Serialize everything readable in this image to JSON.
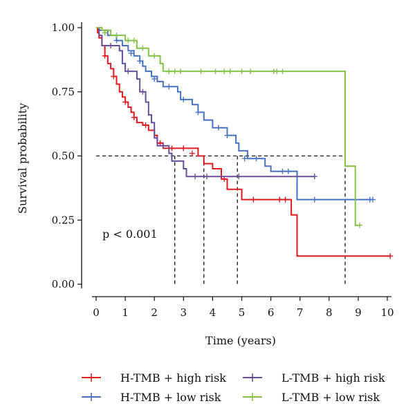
{
  "chart_data": {
    "type": "line",
    "subtype": "kaplan-meier",
    "xlabel": "Time (years)",
    "ylabel": "Survival probability",
    "xlim": [
      0,
      10
    ],
    "ylim": [
      0,
      1
    ],
    "xticks": [
      0,
      1,
      2,
      3,
      4,
      5,
      6,
      7,
      8,
      9,
      10
    ],
    "yticks": [
      0.0,
      0.25,
      0.5,
      0.75,
      1.0
    ],
    "ytick_labels": [
      "0.00",
      "0.25",
      "0.50",
      "0.75",
      "1.00"
    ],
    "annotation": "p < 0.001",
    "grid": false,
    "legend_position": "bottom",
    "median_reference": {
      "y": 0.5,
      "x_end": 8.55,
      "medians": [
        2.7,
        3.7,
        4.85,
        8.55
      ]
    },
    "series": [
      {
        "name": "H-TMB + high risk",
        "color": "#e41a1c",
        "steps": [
          [
            0,
            1.0
          ],
          [
            0.05,
            0.98
          ],
          [
            0.1,
            0.96
          ],
          [
            0.2,
            0.93
          ],
          [
            0.3,
            0.89
          ],
          [
            0.4,
            0.86
          ],
          [
            0.5,
            0.84
          ],
          [
            0.6,
            0.81
          ],
          [
            0.7,
            0.78
          ],
          [
            0.8,
            0.75
          ],
          [
            0.9,
            0.73
          ],
          [
            1.0,
            0.71
          ],
          [
            1.1,
            0.69
          ],
          [
            1.2,
            0.67
          ],
          [
            1.3,
            0.65
          ],
          [
            1.4,
            0.63
          ],
          [
            1.6,
            0.62
          ],
          [
            1.8,
            0.6
          ],
          [
            2.0,
            0.58
          ],
          [
            2.1,
            0.55
          ],
          [
            2.3,
            0.53
          ],
          [
            3.5,
            0.5
          ],
          [
            3.7,
            0.47
          ],
          [
            4.0,
            0.45
          ],
          [
            4.3,
            0.41
          ],
          [
            4.5,
            0.37
          ],
          [
            5.0,
            0.33
          ],
          [
            6.7,
            0.27
          ],
          [
            6.9,
            0.11
          ],
          [
            10.1,
            0.11
          ]
        ],
        "censored": [
          [
            0.3,
            0.89
          ],
          [
            0.6,
            0.81
          ],
          [
            1.0,
            0.71
          ],
          [
            1.3,
            0.65
          ],
          [
            1.7,
            0.62
          ],
          [
            2.2,
            0.55
          ],
          [
            2.6,
            0.53
          ],
          [
            3.0,
            0.53
          ],
          [
            3.3,
            0.51
          ],
          [
            4.4,
            0.41
          ],
          [
            5.4,
            0.33
          ],
          [
            6.3,
            0.33
          ],
          [
            6.5,
            0.33
          ],
          [
            10.1,
            0.11
          ]
        ]
      },
      {
        "name": "H-TMB + low risk",
        "color": "#4472c4",
        "steps": [
          [
            0,
            1.0
          ],
          [
            0.1,
            0.99
          ],
          [
            0.4,
            0.97
          ],
          [
            0.7,
            0.95
          ],
          [
            0.9,
            0.93
          ],
          [
            1.1,
            0.91
          ],
          [
            1.3,
            0.89
          ],
          [
            1.5,
            0.87
          ],
          [
            1.6,
            0.85
          ],
          [
            1.7,
            0.83
          ],
          [
            1.9,
            0.81
          ],
          [
            2.1,
            0.79
          ],
          [
            2.3,
            0.77
          ],
          [
            2.8,
            0.75
          ],
          [
            2.9,
            0.72
          ],
          [
            3.3,
            0.7
          ],
          [
            3.5,
            0.67
          ],
          [
            3.7,
            0.64
          ],
          [
            4.0,
            0.61
          ],
          [
            4.5,
            0.58
          ],
          [
            4.8,
            0.55
          ],
          [
            4.9,
            0.52
          ],
          [
            5.2,
            0.49
          ],
          [
            5.8,
            0.46
          ],
          [
            6.0,
            0.44
          ],
          [
            6.9,
            0.33
          ],
          [
            9.5,
            0.33
          ]
        ],
        "censored": [
          [
            0.3,
            0.98
          ],
          [
            0.7,
            0.95
          ],
          [
            1.2,
            0.9
          ],
          [
            1.5,
            0.87
          ],
          [
            2.0,
            0.8
          ],
          [
            2.5,
            0.77
          ],
          [
            3.0,
            0.72
          ],
          [
            3.5,
            0.67
          ],
          [
            4.2,
            0.61
          ],
          [
            4.5,
            0.58
          ],
          [
            5.1,
            0.49
          ],
          [
            5.5,
            0.49
          ],
          [
            6.4,
            0.44
          ],
          [
            6.6,
            0.44
          ],
          [
            7.5,
            0.33
          ],
          [
            9.4,
            0.33
          ],
          [
            9.5,
            0.33
          ]
        ]
      },
      {
        "name": "L-TMB + high risk",
        "color": "#6b4c9a",
        "steps": [
          [
            0,
            1.0
          ],
          [
            0.1,
            0.97
          ],
          [
            0.2,
            0.93
          ],
          [
            0.8,
            0.91
          ],
          [
            0.9,
            0.86
          ],
          [
            1.0,
            0.83
          ],
          [
            1.4,
            0.8
          ],
          [
            1.5,
            0.75
          ],
          [
            1.7,
            0.71
          ],
          [
            1.8,
            0.66
          ],
          [
            1.9,
            0.63
          ],
          [
            2.0,
            0.57
          ],
          [
            2.1,
            0.54
          ],
          [
            2.5,
            0.51
          ],
          [
            2.6,
            0.48
          ],
          [
            3.0,
            0.45
          ],
          [
            3.1,
            0.42
          ],
          [
            7.5,
            0.42
          ]
        ],
        "censored": [
          [
            0.5,
            0.93
          ],
          [
            1.1,
            0.83
          ],
          [
            1.6,
            0.75
          ],
          [
            2.3,
            0.54
          ],
          [
            3.4,
            0.42
          ],
          [
            3.8,
            0.42
          ],
          [
            4.9,
            0.42
          ],
          [
            7.5,
            0.42
          ]
        ]
      },
      {
        "name": "L-TMB + low risk",
        "color": "#82c341",
        "steps": [
          [
            0,
            1.0
          ],
          [
            0.2,
            0.99
          ],
          [
            0.5,
            0.97
          ],
          [
            1.0,
            0.95
          ],
          [
            1.4,
            0.92
          ],
          [
            1.8,
            0.89
          ],
          [
            2.2,
            0.86
          ],
          [
            2.3,
            0.83
          ],
          [
            8.5,
            0.83
          ],
          [
            8.55,
            0.46
          ],
          [
            8.9,
            0.23
          ],
          [
            9.05,
            0.23
          ]
        ],
        "censored": [
          [
            0.3,
            0.98
          ],
          [
            0.7,
            0.97
          ],
          [
            1.1,
            0.95
          ],
          [
            1.3,
            0.95
          ],
          [
            1.6,
            0.92
          ],
          [
            2.0,
            0.89
          ],
          [
            2.5,
            0.83
          ],
          [
            2.7,
            0.83
          ],
          [
            2.9,
            0.83
          ],
          [
            3.6,
            0.83
          ],
          [
            4.1,
            0.83
          ],
          [
            4.4,
            0.83
          ],
          [
            4.6,
            0.83
          ],
          [
            5.0,
            0.83
          ],
          [
            5.3,
            0.83
          ],
          [
            6.1,
            0.83
          ],
          [
            6.2,
            0.83
          ],
          [
            6.4,
            0.83
          ],
          [
            9.05,
            0.23
          ]
        ]
      }
    ]
  }
}
